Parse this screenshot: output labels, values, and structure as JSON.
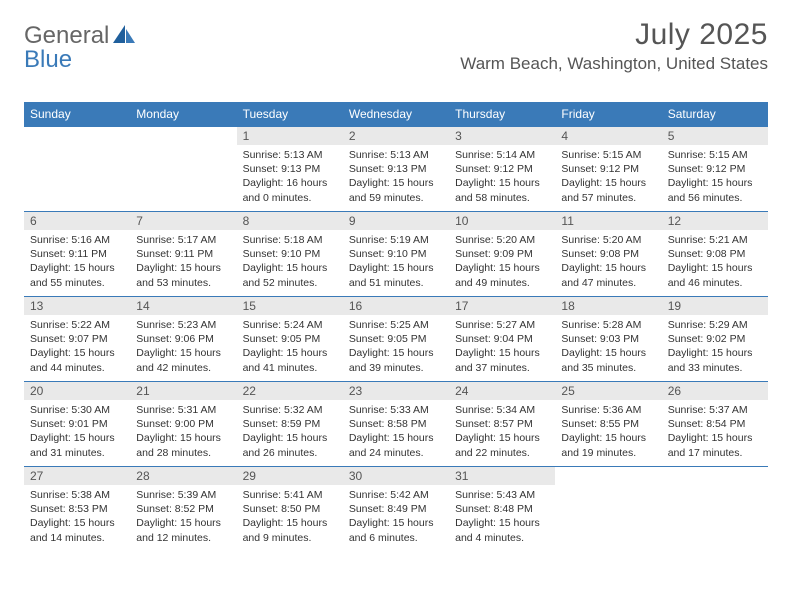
{
  "brand": {
    "part1": "General",
    "part2": "Blue"
  },
  "title": "July 2025",
  "location": "Warm Beach, Washington, United States",
  "colors": {
    "accent": "#3a7ab8",
    "daynum_bg": "#e9e9e9",
    "text": "#555555",
    "body_text": "#333333"
  },
  "weekdays": [
    "Sunday",
    "Monday",
    "Tuesday",
    "Wednesday",
    "Thursday",
    "Friday",
    "Saturday"
  ],
  "weeks": [
    [
      null,
      null,
      {
        "n": "1",
        "sr": "5:13 AM",
        "ss": "9:13 PM",
        "dl": "16 hours and 0 minutes."
      },
      {
        "n": "2",
        "sr": "5:13 AM",
        "ss": "9:13 PM",
        "dl": "15 hours and 59 minutes."
      },
      {
        "n": "3",
        "sr": "5:14 AM",
        "ss": "9:12 PM",
        "dl": "15 hours and 58 minutes."
      },
      {
        "n": "4",
        "sr": "5:15 AM",
        "ss": "9:12 PM",
        "dl": "15 hours and 57 minutes."
      },
      {
        "n": "5",
        "sr": "5:15 AM",
        "ss": "9:12 PM",
        "dl": "15 hours and 56 minutes."
      }
    ],
    [
      {
        "n": "6",
        "sr": "5:16 AM",
        "ss": "9:11 PM",
        "dl": "15 hours and 55 minutes."
      },
      {
        "n": "7",
        "sr": "5:17 AM",
        "ss": "9:11 PM",
        "dl": "15 hours and 53 minutes."
      },
      {
        "n": "8",
        "sr": "5:18 AM",
        "ss": "9:10 PM",
        "dl": "15 hours and 52 minutes."
      },
      {
        "n": "9",
        "sr": "5:19 AM",
        "ss": "9:10 PM",
        "dl": "15 hours and 51 minutes."
      },
      {
        "n": "10",
        "sr": "5:20 AM",
        "ss": "9:09 PM",
        "dl": "15 hours and 49 minutes."
      },
      {
        "n": "11",
        "sr": "5:20 AM",
        "ss": "9:08 PM",
        "dl": "15 hours and 47 minutes."
      },
      {
        "n": "12",
        "sr": "5:21 AM",
        "ss": "9:08 PM",
        "dl": "15 hours and 46 minutes."
      }
    ],
    [
      {
        "n": "13",
        "sr": "5:22 AM",
        "ss": "9:07 PM",
        "dl": "15 hours and 44 minutes."
      },
      {
        "n": "14",
        "sr": "5:23 AM",
        "ss": "9:06 PM",
        "dl": "15 hours and 42 minutes."
      },
      {
        "n": "15",
        "sr": "5:24 AM",
        "ss": "9:05 PM",
        "dl": "15 hours and 41 minutes."
      },
      {
        "n": "16",
        "sr": "5:25 AM",
        "ss": "9:05 PM",
        "dl": "15 hours and 39 minutes."
      },
      {
        "n": "17",
        "sr": "5:27 AM",
        "ss": "9:04 PM",
        "dl": "15 hours and 37 minutes."
      },
      {
        "n": "18",
        "sr": "5:28 AM",
        "ss": "9:03 PM",
        "dl": "15 hours and 35 minutes."
      },
      {
        "n": "19",
        "sr": "5:29 AM",
        "ss": "9:02 PM",
        "dl": "15 hours and 33 minutes."
      }
    ],
    [
      {
        "n": "20",
        "sr": "5:30 AM",
        "ss": "9:01 PM",
        "dl": "15 hours and 31 minutes."
      },
      {
        "n": "21",
        "sr": "5:31 AM",
        "ss": "9:00 PM",
        "dl": "15 hours and 28 minutes."
      },
      {
        "n": "22",
        "sr": "5:32 AM",
        "ss": "8:59 PM",
        "dl": "15 hours and 26 minutes."
      },
      {
        "n": "23",
        "sr": "5:33 AM",
        "ss": "8:58 PM",
        "dl": "15 hours and 24 minutes."
      },
      {
        "n": "24",
        "sr": "5:34 AM",
        "ss": "8:57 PM",
        "dl": "15 hours and 22 minutes."
      },
      {
        "n": "25",
        "sr": "5:36 AM",
        "ss": "8:55 PM",
        "dl": "15 hours and 19 minutes."
      },
      {
        "n": "26",
        "sr": "5:37 AM",
        "ss": "8:54 PM",
        "dl": "15 hours and 17 minutes."
      }
    ],
    [
      {
        "n": "27",
        "sr": "5:38 AM",
        "ss": "8:53 PM",
        "dl": "15 hours and 14 minutes."
      },
      {
        "n": "28",
        "sr": "5:39 AM",
        "ss": "8:52 PM",
        "dl": "15 hours and 12 minutes."
      },
      {
        "n": "29",
        "sr": "5:41 AM",
        "ss": "8:50 PM",
        "dl": "15 hours and 9 minutes."
      },
      {
        "n": "30",
        "sr": "5:42 AM",
        "ss": "8:49 PM",
        "dl": "15 hours and 6 minutes."
      },
      {
        "n": "31",
        "sr": "5:43 AM",
        "ss": "8:48 PM",
        "dl": "15 hours and 4 minutes."
      },
      null,
      null
    ]
  ],
  "labels": {
    "sunrise": "Sunrise:",
    "sunset": "Sunset:",
    "daylight": "Daylight:"
  }
}
